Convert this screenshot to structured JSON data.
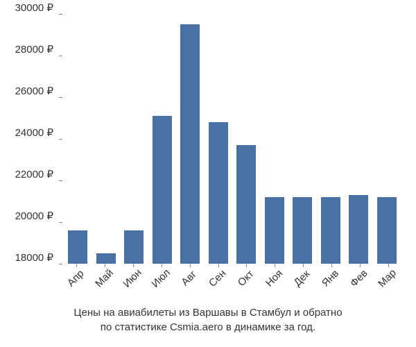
{
  "chart": {
    "type": "bar",
    "categories": [
      "Апр",
      "Май",
      "Июн",
      "Июл",
      "Авг",
      "Сен",
      "Окт",
      "Ноя",
      "Дек",
      "Янв",
      "Фев",
      "Мар"
    ],
    "values": [
      19600,
      18500,
      19600,
      25100,
      29500,
      24800,
      23700,
      21200,
      21200,
      21200,
      21300,
      21200
    ],
    "bar_color": "#4a71a3",
    "background_color": "#ffffff",
    "y_axis": {
      "min": 18000,
      "max": 30000,
      "tick_step": 2000,
      "ticks": [
        18000,
        20000,
        22000,
        24000,
        26000,
        28000,
        30000
      ],
      "tick_labels": [
        "18000 ₽",
        "20000 ₽",
        "22000 ₽",
        "24000 ₽",
        "26000 ₽",
        "28000 ₽",
        "30000 ₽"
      ],
      "label_color": "#333333",
      "label_fontsize": 15
    },
    "x_axis": {
      "label_color": "#333333",
      "label_fontsize": 15,
      "label_rotation_deg": -45
    },
    "bar_width_ratio": 0.7
  },
  "caption": {
    "line1": "Цены на авиабилеты из Варшавы в Стамбул и обратно",
    "line2": "по статистике Csmia.aero в динамике за год.",
    "color": "#333333",
    "fontsize": 15
  }
}
